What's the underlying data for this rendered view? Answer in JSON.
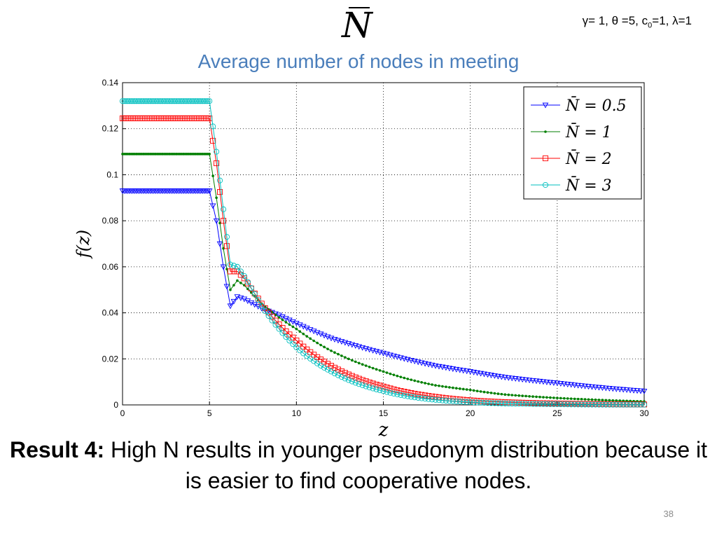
{
  "slide": {
    "heading_symbol": "N",
    "params": {
      "gamma": "γ= 1, ",
      "theta": "θ =5, ",
      "c0_prefix": "c",
      "c0_sub": "0",
      "c0_rest": "=1, ",
      "lambda": "λ=1"
    },
    "subtitle": "Average number of nodes in meeting",
    "caption_bold": "Result 4:",
    "caption_text": " High N results in younger pseudonym distribution because it is easier to find cooperative nodes.",
    "page_number": "38"
  },
  "chart_data": {
    "type": "line",
    "xlabel": "z",
    "ylabel": "f(z)",
    "xlim": [
      0,
      30
    ],
    "ylim": [
      0,
      0.14
    ],
    "xticks": [
      "0",
      "5",
      "10",
      "15",
      "20",
      "25",
      "30"
    ],
    "yticks": [
      "0",
      "0.02",
      "0.04",
      "0.06",
      "0.08",
      "0.1",
      "0.12",
      "0.14"
    ],
    "grid": true,
    "legend_position": "top-right",
    "series": [
      {
        "name": "N̄ = 0.5",
        "color": "#0000ff",
        "marker": "triangle-down",
        "plateau": 0.093,
        "x": [
          5,
          5.4,
          5.8,
          6.2,
          6.6,
          7,
          8,
          9,
          10,
          12,
          15,
          18,
          20,
          22,
          25,
          28,
          30
        ],
        "y": [
          0.093,
          0.08,
          0.06,
          0.043,
          0.047,
          0.046,
          0.042,
          0.039,
          0.0355,
          0.029,
          0.0225,
          0.017,
          0.0145,
          0.012,
          0.0095,
          0.0072,
          0.006
        ]
      },
      {
        "name": "N̄ = 1",
        "color": "#007f00",
        "marker": "dot",
        "plateau": 0.109,
        "x": [
          5,
          5.4,
          5.8,
          6.2,
          6.6,
          7,
          8,
          9,
          10,
          12,
          15,
          18,
          20,
          22,
          25,
          28,
          30
        ],
        "y": [
          0.109,
          0.09,
          0.068,
          0.05,
          0.054,
          0.052,
          0.044,
          0.038,
          0.033,
          0.0235,
          0.0145,
          0.0085,
          0.0065,
          0.0045,
          0.003,
          0.002,
          0.0015
        ]
      },
      {
        "name": "N̄ = 2",
        "color": "#ff0000",
        "marker": "square",
        "plateau": 0.1245,
        "x": [
          5,
          5.4,
          5.8,
          6.2,
          6.6,
          7,
          8,
          9,
          10,
          12,
          15,
          18,
          20,
          22,
          25,
          28,
          30
        ],
        "y": [
          0.1245,
          0.105,
          0.08,
          0.058,
          0.058,
          0.055,
          0.044,
          0.035,
          0.028,
          0.017,
          0.008,
          0.0035,
          0.002,
          0.0012,
          0.0006,
          0.0003,
          0.0002
        ]
      },
      {
        "name": "N̄ = 3",
        "color": "#00bfbf",
        "marker": "circle",
        "plateau": 0.132,
        "x": [
          5,
          5.4,
          5.8,
          6.2,
          6.6,
          7,
          8,
          9,
          10,
          12,
          15,
          18,
          20,
          22,
          25,
          28,
          30
        ],
        "y": [
          0.132,
          0.11,
          0.085,
          0.061,
          0.06,
          0.056,
          0.043,
          0.033,
          0.025,
          0.0145,
          0.006,
          0.0022,
          0.0012,
          0.0006,
          0.0003,
          0.0001,
          0.0001
        ]
      }
    ]
  }
}
